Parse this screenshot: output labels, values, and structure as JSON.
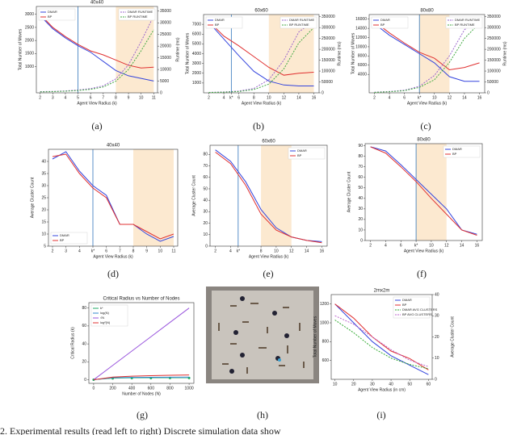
{
  "chart_data": [
    {
      "type": "line",
      "title": "40x40",
      "xlabel": "Agent View Radius (k)",
      "ylabel": "Total Number of Moves",
      "y2label": "Runtime (ms)",
      "x": [
        2,
        3,
        4,
        5,
        6,
        7,
        8,
        9,
        10,
        11
      ],
      "xlim": [
        1.7,
        11.3
      ],
      "xticks": [
        2,
        3,
        4,
        5,
        6,
        7,
        8,
        9,
        10,
        11
      ],
      "ylim": [
        0,
        3300
      ],
      "yticks": [
        1000,
        1500,
        2000,
        2500,
        3000
      ],
      "y2lim": [
        0,
        37000
      ],
      "y2ticks": [
        0,
        5000,
        10000,
        15000,
        20000,
        25000,
        30000,
        35000
      ],
      "vline": 5,
      "shade": [
        8,
        11
      ],
      "legend": "upper left",
      "legend2": "upper right",
      "series": [
        {
          "name": "DMAR",
          "color": "#3344dd",
          "values": [
            2950,
            2450,
            2100,
            1800,
            1550,
            1200,
            850,
            650,
            550,
            450
          ]
        },
        {
          "name": "BP",
          "color": "#e03030",
          "values": [
            3000,
            2500,
            2150,
            1850,
            1600,
            1450,
            1250,
            1050,
            950,
            980
          ]
        },
        {
          "name": "DMAR RUNTIME",
          "color": "#9966cc",
          "dash": true,
          "axis": "y2",
          "values": [
            500,
            600,
            800,
            1200,
            1800,
            3000,
            6000,
            12000,
            22000,
            33000
          ]
        },
        {
          "name": "BP RUNTIME",
          "color": "#44aa44",
          "dash": true,
          "axis": "y2",
          "values": [
            400,
            500,
            700,
            1000,
            1500,
            2500,
            5000,
            10000,
            18000,
            27000
          ]
        }
      ]
    },
    {
      "type": "line",
      "title": "60x60",
      "xlabel": "Agent View Radius (k)",
      "ylabel": "Total Number of Moves",
      "y2label": "Runtime (ms)",
      "x": [
        2,
        4,
        6,
        8,
        10,
        12,
        14,
        16
      ],
      "xlim": [
        1.3,
        16.7
      ],
      "xticks": [
        2,
        4,
        {
          "value": 5,
          "label": "k*"
        },
        6,
        8,
        10,
        12,
        14,
        16
      ],
      "ylim": [
        0,
        8000
      ],
      "yticks": [
        1000,
        2000,
        3000,
        4000,
        5000,
        6000,
        7000
      ],
      "y2lim": [
        0,
        360000
      ],
      "y2ticks": [
        0,
        50000,
        100000,
        150000,
        200000,
        250000,
        300000,
        350000
      ],
      "vline": 5,
      "shade": [
        10,
        16
      ],
      "legend": "upper left",
      "legend2": "upper right",
      "series": [
        {
          "name": "DMAR",
          "color": "#3344dd",
          "values": [
            7200,
            5500,
            3800,
            2200,
            1200,
            800,
            700,
            700
          ]
        },
        {
          "name": "BP",
          "color": "#e03030",
          "values": [
            7300,
            5800,
            4800,
            3700,
            2600,
            1800,
            2000,
            2100
          ]
        },
        {
          "name": "DMAR RUNTIME",
          "color": "#9966cc",
          "dash": true,
          "axis": "y2",
          "values": [
            2000,
            4000,
            8000,
            20000,
            60000,
            150000,
            280000,
            330000
          ]
        },
        {
          "name": "BP RUNTIME",
          "color": "#44aa44",
          "dash": true,
          "axis": "y2",
          "values": [
            1500,
            3000,
            6000,
            15000,
            40000,
            110000,
            230000,
            300000
          ]
        }
      ]
    },
    {
      "type": "line",
      "title": "80x80",
      "xlabel": "Agent View Radius (k)",
      "ylabel": "Total Number of Moves",
      "y2label": "Runtime (ms)",
      "x": [
        2,
        4,
        6,
        8,
        10,
        12,
        14,
        16
      ],
      "xlim": [
        1.3,
        16.7
      ],
      "xticks": [
        2,
        4,
        6,
        {
          "value": 8,
          "label": "k*"
        },
        10,
        12,
        14,
        16
      ],
      "ylim": [
        0,
        17000
      ],
      "yticks": [
        4000,
        6000,
        8000,
        10000,
        12000,
        14000,
        16000
      ],
      "y2lim": [
        0,
        360000
      ],
      "y2ticks": [
        0,
        50000,
        100000,
        150000,
        200000,
        250000,
        300000,
        350000
      ],
      "vline": 8,
      "shade": [
        8,
        12
      ],
      "legend": "upper left",
      "legend2": "upper right",
      "series": [
        {
          "name": "DMAR",
          "color": "#3344dd",
          "values": [
            15000,
            12500,
            10500,
            8500,
            6500,
            3500,
            2500,
            2500
          ]
        },
        {
          "name": "BP",
          "color": "#e03030",
          "values": [
            15500,
            13000,
            10800,
            8800,
            7500,
            5000,
            5500,
            6500
          ]
        },
        {
          "name": "DMAR RUNTIME",
          "color": "#9966cc",
          "dash": true,
          "axis": "y2",
          "values": [
            3000,
            6000,
            12000,
            30000,
            80000,
            170000,
            290000,
            340000
          ]
        },
        {
          "name": "BP RUNTIME",
          "color": "#44aa44",
          "dash": true,
          "axis": "y2",
          "values": [
            2000,
            5000,
            10000,
            25000,
            60000,
            140000,
            250000,
            320000
          ]
        }
      ]
    },
    {
      "type": "line",
      "title": "40x40",
      "xlabel": "Agent View Radius (k)",
      "ylabel": "Average Cluster Count",
      "x": [
        2,
        3,
        4,
        5,
        6,
        7,
        8,
        9,
        10,
        11
      ],
      "xlim": [
        1.7,
        11.3
      ],
      "xticks": [
        2,
        3,
        4,
        {
          "value": 5,
          "label": "k*"
        },
        6,
        7,
        8,
        9,
        10,
        11
      ],
      "ylim": [
        5,
        45
      ],
      "yticks": [
        5,
        10,
        15,
        20,
        25,
        30,
        35,
        40
      ],
      "vline": 5,
      "shade": [
        8,
        11
      ],
      "legend": "lower left",
      "series": [
        {
          "name": "DMAR",
          "color": "#3344dd",
          "values": [
            41,
            44,
            36,
            30,
            26,
            14,
            14,
            10,
            7,
            9
          ]
        },
        {
          "name": "BP",
          "color": "#e03030",
          "values": [
            42,
            43,
            35,
            29,
            25,
            14,
            14,
            11,
            8,
            10
          ]
        }
      ]
    },
    {
      "type": "line",
      "title": "60x60",
      "xlabel": "Agent View Radius (k)",
      "ylabel": "Average Cluster Count",
      "x": [
        2,
        4,
        6,
        8,
        10,
        12,
        14,
        16
      ],
      "xlim": [
        1.3,
        16.7
      ],
      "xticks": [
        2,
        4,
        {
          "value": 5,
          "label": "k*"
        },
        8,
        10,
        12,
        14,
        16
      ],
      "ylim": [
        0,
        88
      ],
      "yticks": [
        0,
        10,
        20,
        30,
        40,
        50,
        60,
        70,
        80
      ],
      "vline": 5,
      "shade": [
        8,
        12
      ],
      "legend": "upper right",
      "series": [
        {
          "name": "DMAR",
          "color": "#3344dd",
          "values": [
            84,
            74,
            56,
            32,
            16,
            8,
            5,
            4
          ]
        },
        {
          "name": "BP",
          "color": "#e03030",
          "values": [
            82,
            72,
            53,
            28,
            14,
            8,
            5,
            3
          ]
        }
      ]
    },
    {
      "type": "line",
      "title": "80x80",
      "xlabel": "Agent View Radius (k)",
      "ylabel": "Average Cluster Count",
      "x": [
        2,
        4,
        6,
        8,
        10,
        12,
        14,
        16
      ],
      "xlim": [
        1.3,
        16.7
      ],
      "xticks": [
        2,
        4,
        6,
        {
          "value": 8,
          "label": "k*"
        },
        10,
        12,
        14,
        16
      ],
      "ylim": [
        0,
        92
      ],
      "yticks": [
        0,
        10,
        20,
        30,
        40,
        50,
        60,
        70,
        80,
        90
      ],
      "vline": 8,
      "shade": [
        8,
        12
      ],
      "legend": "upper right",
      "series": [
        {
          "name": "DMAR",
          "color": "#3344dd",
          "values": [
            89,
            85,
            72,
            58,
            44,
            30,
            10,
            6
          ]
        },
        {
          "name": "BP",
          "color": "#e03030",
          "values": [
            89,
            83,
            70,
            56,
            40,
            25,
            10,
            5
          ]
        }
      ]
    },
    {
      "type": "line",
      "title": "Critical Radius vs Number of Nodes",
      "xlabel": "Number of Nodes (N)",
      "ylabel": "Critical Radius (k)",
      "x": [
        0,
        200,
        400,
        600,
        800,
        1000
      ],
      "xlim": [
        -50,
        1050
      ],
      "xticks": [
        0,
        200,
        400,
        600,
        800,
        1000
      ],
      "ylim": [
        -4,
        86
      ],
      "yticks": [
        0,
        20,
        40,
        60,
        80
      ],
      "legend": "upper left",
      "series": [
        {
          "name": "k*",
          "color": "#22aa66",
          "dots": true,
          "values": [
            0,
            1.5,
            1.8,
            1.9,
            2,
            2
          ]
        },
        {
          "name": "log(N)",
          "color": "#3388cc",
          "values": [
            0,
            2.3,
            2.6,
            2.8,
            2.9,
            3
          ]
        },
        {
          "name": "√N",
          "color": "#9955dd",
          "values": [
            0,
            16,
            32,
            48,
            64,
            80
          ]
        },
        {
          "name": "log²(N)",
          "color": "#e03030",
          "values": [
            0,
            3,
            4,
            4.6,
            5,
            5.3
          ]
        }
      ]
    },
    {
      "type": "line",
      "title": "2mx2m",
      "xlabel": "Agent View Radius (in cm)",
      "ylabel": "Total Number of Moves",
      "y2label": "Average Cluster Count",
      "x": [
        10,
        20,
        30,
        40,
        50,
        60
      ],
      "xlim": [
        8,
        62
      ],
      "xticks": [
        10,
        20,
        30,
        40,
        50,
        60
      ],
      "ylim": [
        400,
        1300
      ],
      "yticks": [
        600,
        800,
        1000,
        1200
      ],
      "y2lim": [
        0,
        40
      ],
      "y2ticks": [
        0,
        10,
        20,
        30,
        40
      ],
      "legend": "upper right",
      "series": [
        {
          "name": "DMAR",
          "color": "#3344dd",
          "values": [
            1200,
            1000,
            800,
            650,
            550,
            450
          ]
        },
        {
          "name": "BP",
          "color": "#e03030",
          "values": [
            1200,
            1050,
            850,
            700,
            620,
            500
          ]
        },
        {
          "name": "DMAR AVG CLUSTERS",
          "color": "#33aa33",
          "dash": true,
          "axis": "y2",
          "values": [
            28,
            22,
            15,
            10,
            7,
            5
          ]
        },
        {
          "name": "BP AVG CLUSTERS",
          "color": "#bb66cc",
          "dash": true,
          "axis": "y2",
          "values": [
            30,
            26,
            20,
            14,
            9,
            6
          ]
        }
      ]
    }
  ],
  "panel_labels": [
    "(a)",
    "(b)",
    "(c)",
    "(d)",
    "(e)",
    "(f)",
    "(g)",
    "(h)",
    "(i)"
  ],
  "caption": "2. Experimental results (read left to right) Discrete simulation data show"
}
